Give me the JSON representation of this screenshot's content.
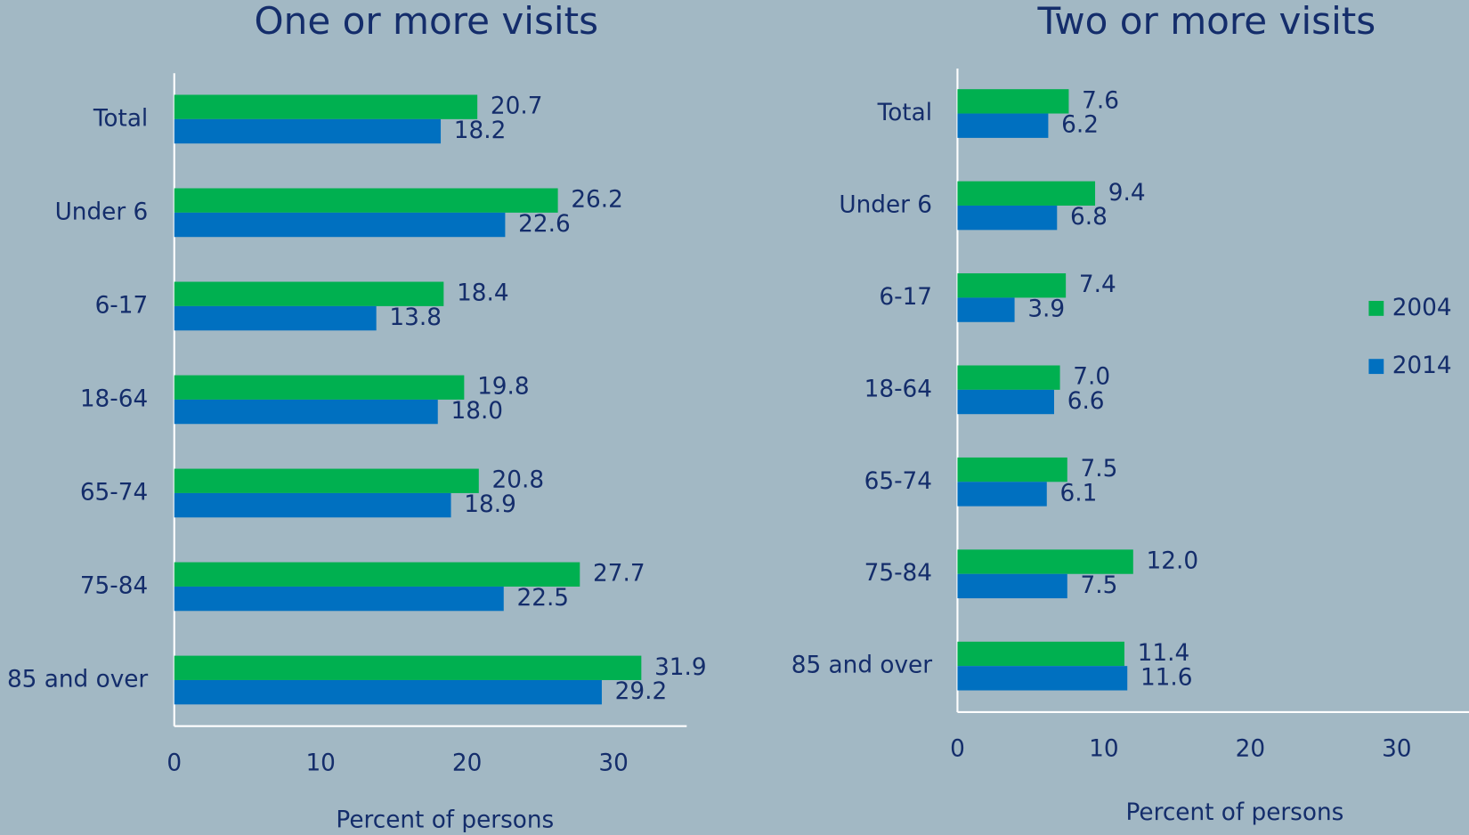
{
  "chart_data": [
    {
      "type": "barh",
      "title": "One or more visits",
      "x_label": "Percent of persons",
      "categories": [
        "Total",
        "Under 6",
        "6-17",
        "18-64",
        "65-74",
        "75-84",
        "85 and over"
      ],
      "series": [
        {
          "color": "#00b050",
          "values": [
            20.7,
            26.2,
            18.4,
            19.8,
            20.8,
            27.7,
            31.9
          ],
          "value_labels": [
            "20.7",
            "26.2",
            "18.4",
            "19.8",
            "20.8",
            "27.7",
            "31.9"
          ]
        },
        {
          "color": "#0070c0",
          "values": [
            18.2,
            22.6,
            13.8,
            18.0,
            18.9,
            22.5,
            29.2
          ],
          "value_labels": [
            "18.2",
            "22.6",
            "13.8",
            "18.0",
            "18.9",
            "22.5",
            "29.2"
          ]
        }
      ],
      "xlim": [
        0,
        35
      ],
      "xticks": [
        0,
        10,
        20,
        30
      ]
    },
    {
      "type": "barh",
      "title": "Two or more visits",
      "x_label": "Percent of persons",
      "categories": [
        "Total",
        "Under 6",
        "6-17",
        "18-64",
        "65-74",
        "75-84",
        "85 and over"
      ],
      "series": [
        {
          "name": "2004",
          "color": "#00b050",
          "values": [
            7.6,
            9.4,
            7.4,
            7.0,
            7.5,
            12.0,
            11.4
          ],
          "value_labels": [
            "7.6",
            "9.4",
            "7.4",
            "7.0",
            "7.5",
            "12.0",
            "11.4"
          ]
        },
        {
          "name": "2014",
          "color": "#0070c0",
          "values": [
            6.2,
            6.8,
            3.9,
            6.6,
            6.1,
            7.5,
            11.6
          ],
          "value_labels": [
            "6.2",
            "6.8",
            "3.9",
            "6.6",
            "6.1",
            "7.5",
            "11.6"
          ]
        }
      ],
      "xlim": [
        0,
        35
      ],
      "xticks": [
        0,
        10,
        20,
        30
      ],
      "legend": "right"
    }
  ]
}
